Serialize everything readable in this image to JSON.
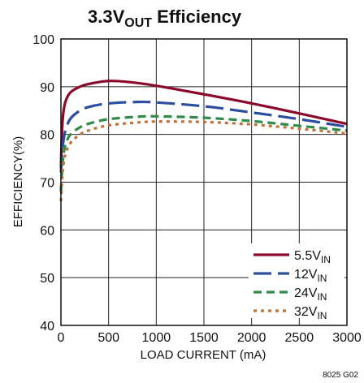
{
  "chart_data": {
    "type": "line",
    "title": {
      "main": "3.3V",
      "sub": "OUT",
      "rest": " Efficiency"
    },
    "xlabel": "LOAD CURRENT (mA)",
    "ylabel": "EFFICIENCY(%)",
    "xlim": [
      0,
      3000
    ],
    "ylim": [
      40,
      100
    ],
    "xticks": [
      "0",
      "500",
      "1000",
      "1500",
      "2000",
      "2500",
      "3000"
    ],
    "yticks": [
      "40",
      "50",
      "60",
      "70",
      "80",
      "90",
      "100"
    ],
    "grid": true,
    "legend_position": "bottom-right",
    "note": "8025 G02",
    "series": [
      {
        "name": "5.5V",
        "name_sub": "IN",
        "color": "#8b0a2a",
        "dash": "solid",
        "x": [
          0,
          10,
          25,
          50,
          100,
          200,
          300,
          500,
          700,
          1000,
          1500,
          2000,
          2500,
          3000
        ],
        "y": [
          73,
          80,
          84.5,
          87,
          88.8,
          90,
          90.6,
          91.2,
          91,
          90.2,
          88.4,
          86.5,
          84.4,
          82.2
        ]
      },
      {
        "name": "12V",
        "name_sub": "IN",
        "color": "#2b4f9e",
        "dash": "long",
        "x": [
          0,
          10,
          25,
          50,
          100,
          200,
          300,
          500,
          800,
          1000,
          1500,
          2000,
          2500,
          3000
        ],
        "y": [
          72,
          75.5,
          78.5,
          81,
          83.3,
          85,
          85.8,
          86.5,
          86.8,
          86.7,
          85.9,
          84.6,
          83.2,
          81.6
        ]
      },
      {
        "name": "24V",
        "name_sub": "IN",
        "color": "#2e8b48",
        "dash": "medium",
        "x": [
          0,
          10,
          25,
          50,
          100,
          200,
          300,
          500,
          800,
          1000,
          1500,
          2000,
          2500,
          3000
        ],
        "y": [
          68,
          72,
          75.5,
          78,
          80,
          81.5,
          82.3,
          83.2,
          83.7,
          83.8,
          83.5,
          82.8,
          81.8,
          80.8
        ]
      },
      {
        "name": "32V",
        "name_sub": "IN",
        "color": "#c0713a",
        "dash": "short",
        "x": [
          0,
          10,
          25,
          50,
          100,
          200,
          300,
          500,
          800,
          1000,
          1500,
          2000,
          2500,
          3000
        ],
        "y": [
          66,
          70,
          73.5,
          76,
          78.2,
          80,
          80.9,
          81.9,
          82.5,
          82.7,
          82.6,
          82.1,
          81.2,
          80.2
        ]
      }
    ]
  }
}
